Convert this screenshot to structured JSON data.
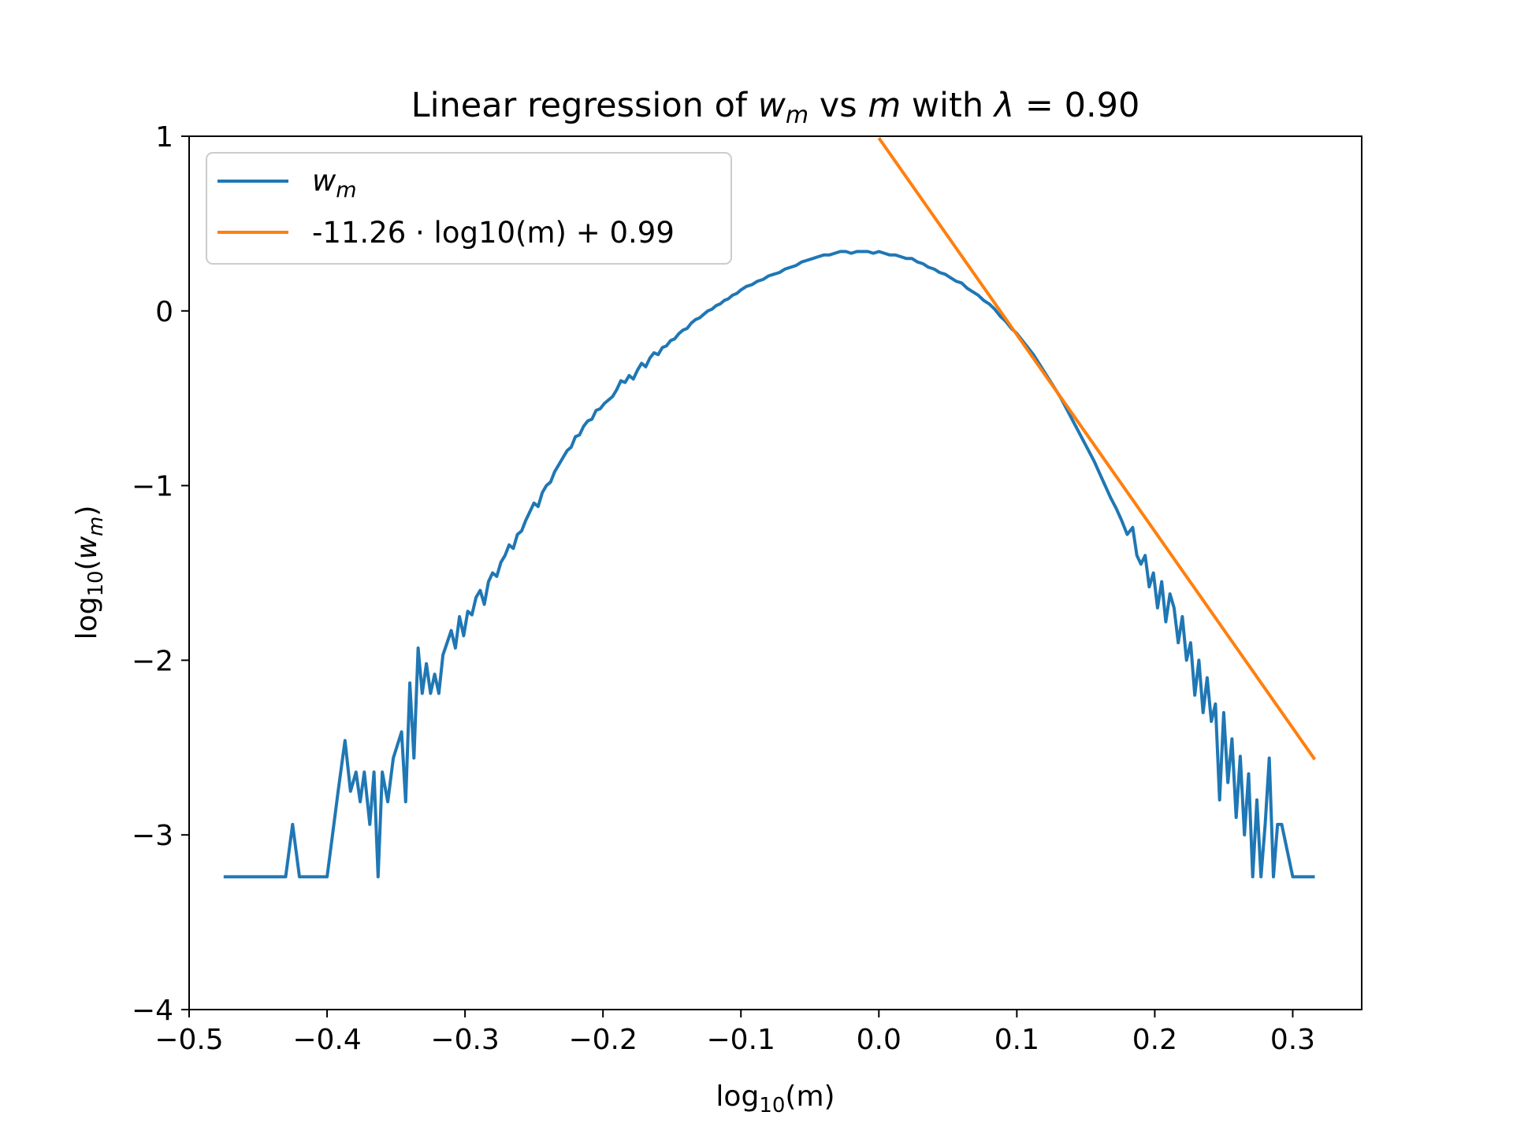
{
  "chart_data": {
    "type": "line",
    "title": {
      "prefix": "Linear regression of ",
      "var1": "w",
      "var1_sub": "m",
      "middle": " vs ",
      "var2": "m",
      "between": " with ",
      "symbol": "λ",
      "suffix": " = 0.90"
    },
    "xlabel": {
      "base": "log",
      "sub": "10",
      "rest": "(m)"
    },
    "ylabel": {
      "base": "log",
      "sub": "10",
      "open": "(",
      "var": "w",
      "var_sub": "m",
      "close": ")"
    },
    "xlim": [
      -0.5,
      0.35
    ],
    "ylim": [
      -4,
      1
    ],
    "x_ticks": [
      -0.5,
      -0.4,
      -0.3,
      -0.2,
      -0.1,
      0.0,
      0.1,
      0.2,
      0.3
    ],
    "x_tick_labels": [
      "−0.5",
      "−0.4",
      "−0.3",
      "−0.2",
      "−0.1",
      "0.0",
      "0.1",
      "0.2",
      "0.3"
    ],
    "y_ticks": [
      1,
      0,
      -1,
      -2,
      -3,
      -4
    ],
    "y_tick_labels": [
      "1",
      "0",
      "−1",
      "−2",
      "−3",
      "−4"
    ],
    "grid": false,
    "legend": {
      "placement": "upper-left",
      "entries": [
        {
          "label_var": "w",
          "label_sub": "m",
          "color": "#1f77b4"
        },
        {
          "label": "-11.26 · log10(m) + 0.99",
          "color": "#ff7f0e"
        }
      ]
    },
    "series": [
      {
        "name": "w_m",
        "color": "#1f77b4",
        "points": [
          [
            -0.475,
            -3.24
          ],
          [
            -0.43,
            -3.24
          ],
          [
            -0.425,
            -2.94
          ],
          [
            -0.42,
            -3.24
          ],
          [
            -0.4,
            -3.24
          ],
          [
            -0.392,
            -2.75
          ],
          [
            -0.387,
            -2.46
          ],
          [
            -0.383,
            -2.75
          ],
          [
            -0.379,
            -2.64
          ],
          [
            -0.376,
            -2.81
          ],
          [
            -0.373,
            -2.64
          ],
          [
            -0.369,
            -2.94
          ],
          [
            -0.366,
            -2.64
          ],
          [
            -0.363,
            -3.24
          ],
          [
            -0.36,
            -2.64
          ],
          [
            -0.356,
            -2.81
          ],
          [
            -0.352,
            -2.56
          ],
          [
            -0.346,
            -2.41
          ],
          [
            -0.343,
            -2.81
          ],
          [
            -0.34,
            -2.13
          ],
          [
            -0.337,
            -2.56
          ],
          [
            -0.334,
            -1.93
          ],
          [
            -0.331,
            -2.19
          ],
          [
            -0.328,
            -2.02
          ],
          [
            -0.325,
            -2.19
          ],
          [
            -0.322,
            -2.08
          ],
          [
            -0.319,
            -2.19
          ],
          [
            -0.316,
            -1.97
          ],
          [
            -0.313,
            -1.9
          ],
          [
            -0.31,
            -1.83
          ],
          [
            -0.307,
            -1.93
          ],
          [
            -0.304,
            -1.75
          ],
          [
            -0.301,
            -1.86
          ],
          [
            -0.298,
            -1.72
          ],
          [
            -0.295,
            -1.74
          ],
          [
            -0.292,
            -1.64
          ],
          [
            -0.289,
            -1.6
          ],
          [
            -0.286,
            -1.68
          ],
          [
            -0.283,
            -1.55
          ],
          [
            -0.28,
            -1.5
          ],
          [
            -0.277,
            -1.52
          ],
          [
            -0.274,
            -1.44
          ],
          [
            -0.271,
            -1.4
          ],
          [
            -0.268,
            -1.34
          ],
          [
            -0.265,
            -1.36
          ],
          [
            -0.262,
            -1.28
          ],
          [
            -0.259,
            -1.26
          ],
          [
            -0.256,
            -1.2
          ],
          [
            -0.253,
            -1.15
          ],
          [
            -0.25,
            -1.1
          ],
          [
            -0.247,
            -1.12
          ],
          [
            -0.244,
            -1.04
          ],
          [
            -0.241,
            -1.0
          ],
          [
            -0.238,
            -0.98
          ],
          [
            -0.235,
            -0.92
          ],
          [
            -0.232,
            -0.88
          ],
          [
            -0.229,
            -0.84
          ],
          [
            -0.226,
            -0.8
          ],
          [
            -0.223,
            -0.78
          ],
          [
            -0.22,
            -0.72
          ],
          [
            -0.217,
            -0.71
          ],
          [
            -0.214,
            -0.66
          ],
          [
            -0.211,
            -0.63
          ],
          [
            -0.208,
            -0.62
          ],
          [
            -0.205,
            -0.57
          ],
          [
            -0.202,
            -0.56
          ],
          [
            -0.199,
            -0.53
          ],
          [
            -0.196,
            -0.51
          ],
          [
            -0.193,
            -0.49
          ],
          [
            -0.19,
            -0.45
          ],
          [
            -0.187,
            -0.4
          ],
          [
            -0.184,
            -0.41
          ],
          [
            -0.181,
            -0.37
          ],
          [
            -0.178,
            -0.39
          ],
          [
            -0.175,
            -0.34
          ],
          [
            -0.172,
            -0.3
          ],
          [
            -0.169,
            -0.32
          ],
          [
            -0.166,
            -0.27
          ],
          [
            -0.163,
            -0.24
          ],
          [
            -0.16,
            -0.25
          ],
          [
            -0.157,
            -0.21
          ],
          [
            -0.154,
            -0.2
          ],
          [
            -0.151,
            -0.17
          ],
          [
            -0.148,
            -0.16
          ],
          [
            -0.145,
            -0.13
          ],
          [
            -0.142,
            -0.11
          ],
          [
            -0.139,
            -0.1
          ],
          [
            -0.136,
            -0.07
          ],
          [
            -0.133,
            -0.05
          ],
          [
            -0.13,
            -0.04
          ],
          [
            -0.127,
            -0.02
          ],
          [
            -0.124,
            0.0
          ],
          [
            -0.121,
            0.01
          ],
          [
            -0.118,
            0.03
          ],
          [
            -0.115,
            0.04
          ],
          [
            -0.112,
            0.06
          ],
          [
            -0.109,
            0.07
          ],
          [
            -0.106,
            0.09
          ],
          [
            -0.103,
            0.1
          ],
          [
            -0.1,
            0.12
          ],
          [
            -0.096,
            0.14
          ],
          [
            -0.092,
            0.15
          ],
          [
            -0.088,
            0.17
          ],
          [
            -0.084,
            0.18
          ],
          [
            -0.08,
            0.2
          ],
          [
            -0.076,
            0.21
          ],
          [
            -0.072,
            0.22
          ],
          [
            -0.068,
            0.24
          ],
          [
            -0.064,
            0.25
          ],
          [
            -0.06,
            0.26
          ],
          [
            -0.056,
            0.28
          ],
          [
            -0.052,
            0.29
          ],
          [
            -0.048,
            0.3
          ],
          [
            -0.044,
            0.31
          ],
          [
            -0.04,
            0.32
          ],
          [
            -0.036,
            0.32
          ],
          [
            -0.032,
            0.33
          ],
          [
            -0.028,
            0.34
          ],
          [
            -0.024,
            0.34
          ],
          [
            -0.02,
            0.33
          ],
          [
            -0.016,
            0.34
          ],
          [
            -0.012,
            0.34
          ],
          [
            -0.008,
            0.34
          ],
          [
            -0.004,
            0.33
          ],
          [
            0.0,
            0.34
          ],
          [
            0.004,
            0.33
          ],
          [
            0.008,
            0.32
          ],
          [
            0.012,
            0.32
          ],
          [
            0.016,
            0.31
          ],
          [
            0.02,
            0.3
          ],
          [
            0.024,
            0.3
          ],
          [
            0.028,
            0.28
          ],
          [
            0.032,
            0.27
          ],
          [
            0.036,
            0.25
          ],
          [
            0.04,
            0.24
          ],
          [
            0.044,
            0.22
          ],
          [
            0.048,
            0.21
          ],
          [
            0.052,
            0.19
          ],
          [
            0.056,
            0.17
          ],
          [
            0.06,
            0.16
          ],
          [
            0.064,
            0.13
          ],
          [
            0.068,
            0.11
          ],
          [
            0.072,
            0.09
          ],
          [
            0.076,
            0.06
          ],
          [
            0.08,
            0.04
          ],
          [
            0.084,
            0.01
          ],
          [
            0.088,
            -0.03
          ],
          [
            0.092,
            -0.06
          ],
          [
            0.096,
            -0.1
          ],
          [
            0.1,
            -0.13
          ],
          [
            0.104,
            -0.17
          ],
          [
            0.108,
            -0.21
          ],
          [
            0.112,
            -0.25
          ],
          [
            0.116,
            -0.3
          ],
          [
            0.12,
            -0.35
          ],
          [
            0.124,
            -0.4
          ],
          [
            0.128,
            -0.45
          ],
          [
            0.132,
            -0.5
          ],
          [
            0.136,
            -0.56
          ],
          [
            0.14,
            -0.62
          ],
          [
            0.144,
            -0.68
          ],
          [
            0.148,
            -0.74
          ],
          [
            0.152,
            -0.8
          ],
          [
            0.156,
            -0.86
          ],
          [
            0.16,
            -0.93
          ],
          [
            0.164,
            -1.0
          ],
          [
            0.168,
            -1.07
          ],
          [
            0.172,
            -1.13
          ],
          [
            0.176,
            -1.2
          ],
          [
            0.18,
            -1.28
          ],
          [
            0.184,
            -1.24
          ],
          [
            0.187,
            -1.4
          ],
          [
            0.19,
            -1.45
          ],
          [
            0.193,
            -1.4
          ],
          [
            0.196,
            -1.58
          ],
          [
            0.199,
            -1.5
          ],
          [
            0.202,
            -1.7
          ],
          [
            0.205,
            -1.55
          ],
          [
            0.208,
            -1.78
          ],
          [
            0.211,
            -1.62
          ],
          [
            0.214,
            -1.7
          ],
          [
            0.217,
            -1.9
          ],
          [
            0.22,
            -1.75
          ],
          [
            0.223,
            -2.0
          ],
          [
            0.226,
            -1.9
          ],
          [
            0.229,
            -2.2
          ],
          [
            0.232,
            -2.0
          ],
          [
            0.235,
            -2.3
          ],
          [
            0.238,
            -2.1
          ],
          [
            0.241,
            -2.35
          ],
          [
            0.244,
            -2.25
          ],
          [
            0.247,
            -2.8
          ],
          [
            0.25,
            -2.3
          ],
          [
            0.253,
            -2.7
          ],
          [
            0.256,
            -2.45
          ],
          [
            0.259,
            -2.9
          ],
          [
            0.262,
            -2.55
          ],
          [
            0.265,
            -3.0
          ],
          [
            0.268,
            -2.65
          ],
          [
            0.271,
            -3.24
          ],
          [
            0.274,
            -2.8
          ],
          [
            0.277,
            -3.24
          ],
          [
            0.28,
            -2.94
          ],
          [
            0.283,
            -2.56
          ],
          [
            0.286,
            -3.24
          ],
          [
            0.289,
            -2.94
          ],
          [
            0.292,
            -2.94
          ],
          [
            0.3,
            -3.24
          ],
          [
            0.316,
            -3.24
          ]
        ]
      },
      {
        "name": "-11.26 · log10(m) + 0.99",
        "color": "#ff7f0e",
        "slope": -11.26,
        "intercept": 0.99,
        "x_range": [
          0.0,
          0.316
        ]
      }
    ]
  }
}
